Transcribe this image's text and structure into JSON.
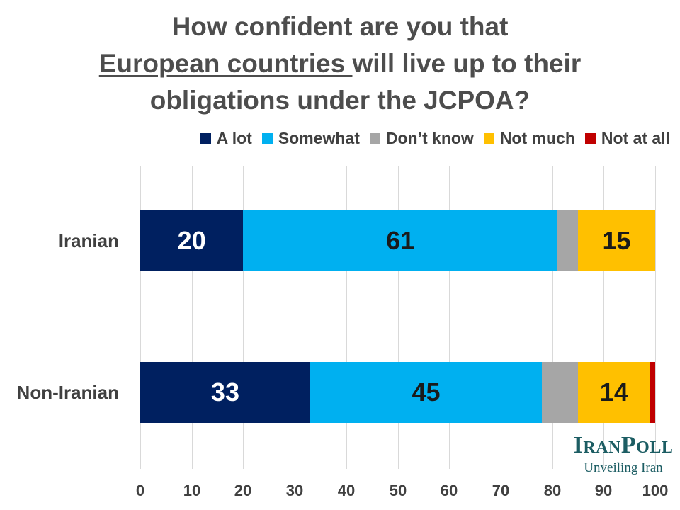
{
  "chart_data": {
    "type": "bar",
    "orientation": "horizontal",
    "stacked": true,
    "title_lines": [
      "How confident are you that",
      "European countries ",
      " will live up to their",
      "obligations under the JCPOA?"
    ],
    "categories": [
      "Iranian",
      "Non-Iranian"
    ],
    "series": [
      {
        "name": "A lot",
        "color": "#002060",
        "values": [
          20,
          33
        ],
        "labels": [
          "20",
          "33"
        ],
        "label_color": "#ffffff"
      },
      {
        "name": "Somewhat",
        "color": "#00b0f0",
        "values": [
          61,
          45
        ],
        "labels": [
          "61",
          "45"
        ],
        "label_color": "#1a1a1a"
      },
      {
        "name": "Don’t know",
        "color": "#a6a6a6",
        "values": [
          4,
          7
        ],
        "labels": [
          "",
          ""
        ],
        "label_color": "#1a1a1a"
      },
      {
        "name": "Not much",
        "color": "#ffc000",
        "values": [
          15,
          14
        ],
        "labels": [
          "15",
          "14"
        ],
        "label_color": "#1a1a1a"
      },
      {
        "name": "Not at all",
        "color": "#c00000",
        "values": [
          0,
          2
        ],
        "labels": [
          "",
          ""
        ],
        "label_color": "#ffffff"
      }
    ],
    "xlim": [
      0,
      100
    ],
    "xticks": [
      "0",
      "10",
      "20",
      "30",
      "40",
      "50",
      "60",
      "70",
      "80",
      "90",
      "100"
    ],
    "grid": true,
    "legend_position": "top-right"
  },
  "brand": {
    "name": "IranPoll",
    "tagline": "Unveiling Iran"
  }
}
